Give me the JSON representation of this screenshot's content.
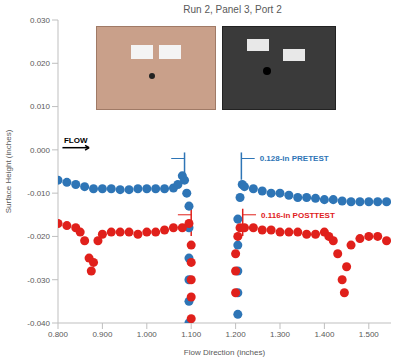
{
  "chart_data": {
    "type": "scatter",
    "title": "Run 2, Panel 3, Port 2",
    "x_label": "Flow Direction (inches)",
    "y_label": "Surface Height (inches)",
    "xlim": [
      0.8,
      1.55
    ],
    "ylim": [
      -0.04,
      0.03
    ],
    "xticks": [
      {
        "value": 0.8,
        "label": "0.800"
      },
      {
        "value": 0.9,
        "label": "0.900"
      },
      {
        "value": 1.0,
        "label": "1.000"
      },
      {
        "value": 1.1,
        "label": "1.100"
      },
      {
        "value": 1.2,
        "label": "1.200"
      },
      {
        "value": 1.3,
        "label": "1.300"
      },
      {
        "value": 1.4,
        "label": "1.400"
      },
      {
        "value": 1.5,
        "label": "1.500"
      }
    ],
    "yticks": [
      {
        "value": -0.04,
        "label": "-0.040"
      },
      {
        "value": -0.03,
        "label": "-0.030"
      },
      {
        "value": -0.02,
        "label": "-0.020"
      },
      {
        "value": -0.01,
        "label": "-0.010"
      },
      {
        "value": 0,
        "label": "0.000"
      },
      {
        "value": 0.01,
        "label": "0.010"
      },
      {
        "value": 0.02,
        "label": "0.020"
      },
      {
        "value": 0.03,
        "label": "0.030"
      }
    ],
    "grid": false,
    "marker": "circle",
    "series": [
      {
        "name": "PRETEST",
        "color": "#2e75b6",
        "x": [
          0.8,
          0.82,
          0.84,
          0.86,
          0.88,
          0.9,
          0.92,
          0.94,
          0.96,
          0.98,
          1.0,
          1.02,
          1.04,
          1.06,
          1.07,
          1.08,
          1.085,
          1.09,
          1.095,
          1.095,
          1.095,
          1.095,
          1.095,
          1.095,
          1.205,
          1.205,
          1.205,
          1.205,
          1.205,
          1.21,
          1.215,
          1.22,
          1.24,
          1.26,
          1.28,
          1.3,
          1.32,
          1.34,
          1.36,
          1.38,
          1.4,
          1.42,
          1.44,
          1.46,
          1.48,
          1.5,
          1.52,
          1.54
        ],
        "values": [
          -0.007,
          -0.0075,
          -0.008,
          -0.0085,
          -0.009,
          -0.009,
          -0.009,
          -0.0092,
          -0.0092,
          -0.009,
          -0.009,
          -0.009,
          -0.009,
          -0.0088,
          -0.008,
          -0.006,
          -0.007,
          -0.01,
          -0.013,
          -0.018,
          -0.025,
          -0.03,
          -0.035,
          -0.04,
          -0.038,
          -0.033,
          -0.028,
          -0.022,
          -0.016,
          -0.011,
          -0.008,
          -0.0085,
          -0.009,
          -0.0095,
          -0.01,
          -0.01,
          -0.0105,
          -0.011,
          -0.011,
          -0.0112,
          -0.0115,
          -0.0115,
          -0.0118,
          -0.012,
          -0.012,
          -0.012,
          -0.012,
          -0.012
        ]
      },
      {
        "name": "POSTTEST",
        "color": "#e0201b",
        "x": [
          0.8,
          0.82,
          0.84,
          0.85,
          0.86,
          0.87,
          0.875,
          0.88,
          0.89,
          0.9,
          0.92,
          0.94,
          0.96,
          0.98,
          1.0,
          1.02,
          1.04,
          1.06,
          1.08,
          1.095,
          1.1,
          1.1,
          1.1,
          1.1,
          1.1,
          1.2,
          1.2,
          1.2,
          1.205,
          1.21,
          1.22,
          1.24,
          1.26,
          1.28,
          1.3,
          1.32,
          1.34,
          1.36,
          1.38,
          1.4,
          1.41,
          1.42,
          1.43,
          1.44,
          1.445,
          1.45,
          1.46,
          1.48,
          1.5,
          1.52,
          1.54
        ],
        "values": [
          -0.017,
          -0.0175,
          -0.018,
          -0.019,
          -0.021,
          -0.025,
          -0.028,
          -0.026,
          -0.021,
          -0.0195,
          -0.019,
          -0.019,
          -0.019,
          -0.0195,
          -0.019,
          -0.019,
          -0.0185,
          -0.018,
          -0.018,
          -0.017,
          -0.022,
          -0.026,
          -0.03,
          -0.034,
          -0.039,
          -0.033,
          -0.028,
          -0.024,
          -0.02,
          -0.018,
          -0.018,
          -0.018,
          -0.0185,
          -0.0185,
          -0.019,
          -0.019,
          -0.019,
          -0.0195,
          -0.0195,
          -0.019,
          -0.02,
          -0.021,
          -0.024,
          -0.03,
          -0.033,
          -0.027,
          -0.022,
          -0.0205,
          -0.02,
          -0.02,
          -0.021
        ]
      }
    ],
    "annotations": [
      {
        "text": "FLOW",
        "x": [
          0.81,
          0.87
        ],
        "y": 0.0005,
        "color": "#000000"
      },
      {
        "text": "0.128-in PRETEST",
        "x": [
          1.085,
          1.213
        ],
        "y": -0.002,
        "color": "#2e75b6"
      },
      {
        "text": "0.116-in POSTTEST",
        "x": [
          1.1,
          1.216
        ],
        "y": -0.015,
        "color": "#e0201b"
      }
    ]
  }
}
